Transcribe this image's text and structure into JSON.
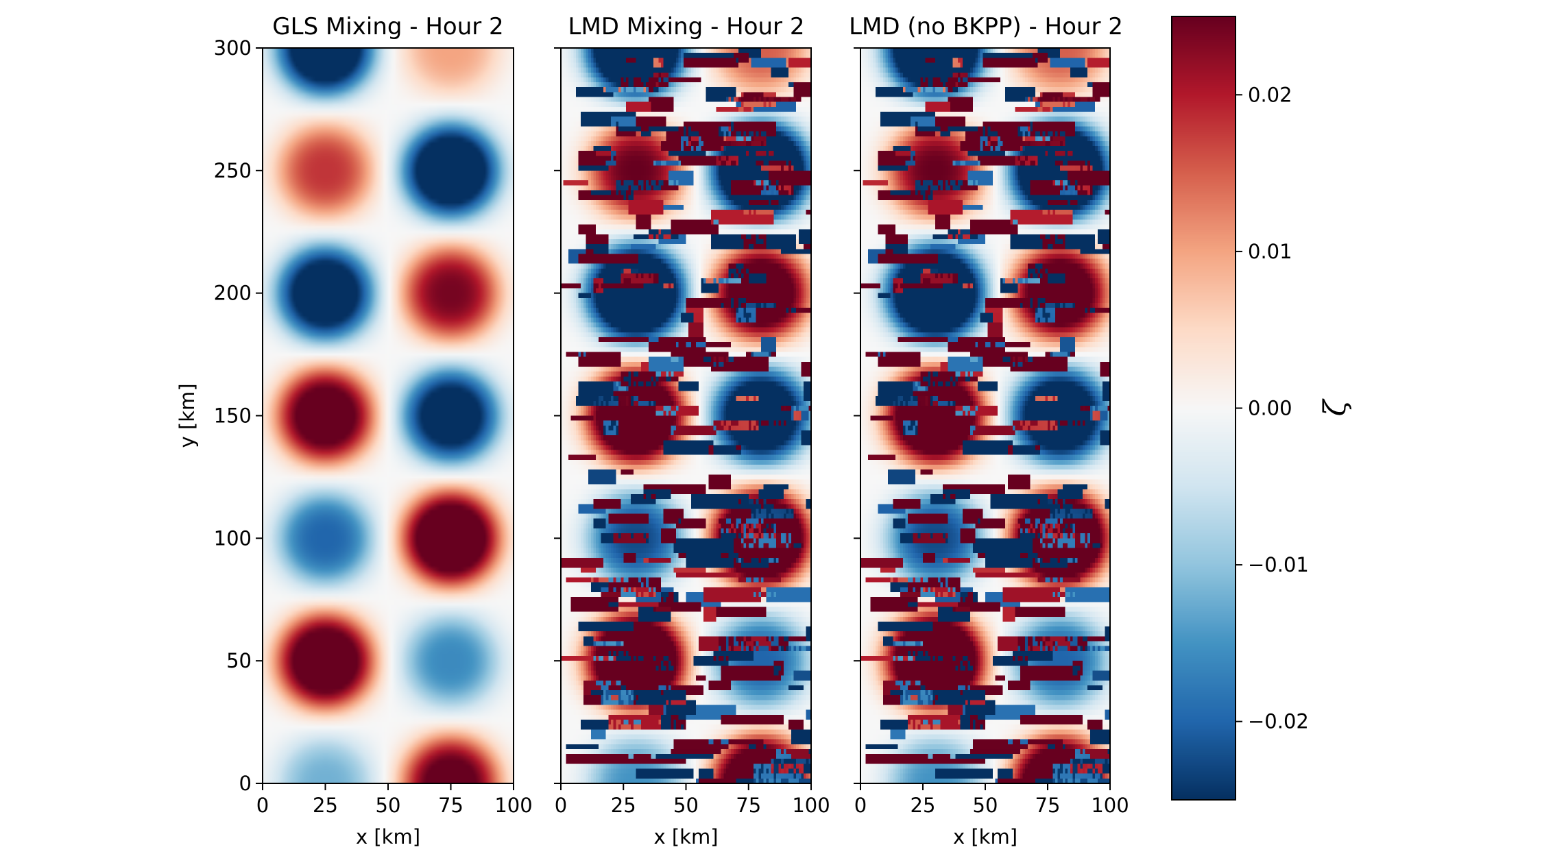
{
  "chart_data": {
    "type": "heatmap",
    "quantity_label": "ζ",
    "colormap": "RdBu_r",
    "colormap_stops": [
      "#053061",
      "#2166ac",
      "#4393c3",
      "#92c5de",
      "#d1e5f0",
      "#f7f7f7",
      "#fddbc7",
      "#f4a582",
      "#d6604d",
      "#b2182b",
      "#67001f"
    ],
    "vmin": -0.025,
    "vmax": 0.025,
    "colorbar": {
      "ticks": [
        -0.02,
        -0.01,
        0.0,
        0.01,
        0.02
      ],
      "tick_labels": [
        "−0.02",
        "−0.01",
        "0.00",
        "0.01",
        "0.02"
      ],
      "label": "ζ",
      "placement": "right"
    },
    "x_ticks": [
      0,
      25,
      50,
      75,
      100
    ],
    "x_tick_labels": [
      "0",
      "25",
      "50",
      "75",
      "100"
    ],
    "y_ticks": [
      0,
      50,
      100,
      150,
      200,
      250,
      300
    ],
    "y_tick_labels": [
      "0",
      "50",
      "100",
      "150",
      "200",
      "250",
      "300"
    ],
    "xlim": [
      0,
      100
    ],
    "ylim": [
      0,
      300
    ],
    "xlabel": "x [km]",
    "ylabel": "y [km]",
    "panels": [
      {
        "title": "GLS Mixing - Hour 2",
        "show_ylabel": true,
        "show_ytick_labels": true,
        "eddy_x_centers_km": [
          25,
          75
        ],
        "eddy_y_centers_km": [
          0,
          50,
          100,
          150,
          200,
          250,
          300
        ],
        "eddy_peak_values": [
          [
            -0.012,
            0.028
          ],
          [
            0.032,
            -0.016
          ],
          [
            -0.02,
            0.034
          ],
          [
            0.03,
            -0.03
          ],
          [
            -0.032,
            0.024
          ],
          [
            0.018,
            -0.034
          ],
          [
            -0.034,
            0.01
          ]
        ],
        "streak_noise": 0.0
      },
      {
        "title": "LMD Mixing - Hour 2",
        "show_ylabel": false,
        "show_ytick_labels": false,
        "eddy_x_centers_km": [
          30,
          80
        ],
        "eddy_y_centers_km": [
          0,
          50,
          100,
          150,
          200,
          250,
          300
        ],
        "eddy_peak_values": [
          [
            -0.012,
            0.03
          ],
          [
            0.034,
            -0.016
          ],
          [
            -0.018,
            0.034
          ],
          [
            0.032,
            -0.028
          ],
          [
            -0.034,
            0.026
          ],
          [
            0.02,
            -0.036
          ],
          [
            -0.036,
            0.012
          ]
        ],
        "streak_noise": 1.0
      },
      {
        "title": "LMD (no BKPP) - Hour 2",
        "show_ylabel": false,
        "show_ytick_labels": false,
        "eddy_x_centers_km": [
          30,
          80
        ],
        "eddy_y_centers_km": [
          0,
          50,
          100,
          150,
          200,
          250,
          300
        ],
        "eddy_peak_values": [
          [
            -0.012,
            0.03
          ],
          [
            0.034,
            -0.016
          ],
          [
            -0.018,
            0.034
          ],
          [
            0.032,
            -0.028
          ],
          [
            -0.034,
            0.026
          ],
          [
            0.02,
            -0.036
          ],
          [
            -0.036,
            0.012
          ]
        ],
        "streak_noise": 1.0
      }
    ]
  }
}
